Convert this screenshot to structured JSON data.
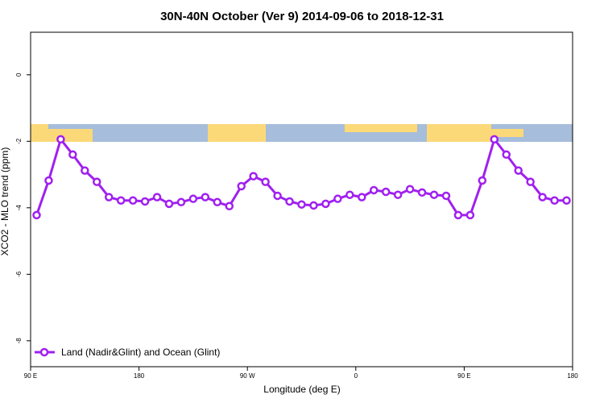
{
  "chart_data": {
    "type": "line",
    "title": "30N-40N October (Ver 9)   2014-09-06 to 2018-12-31",
    "x_label": "Longitude (deg E)",
    "y_label": "XCO2 - MLO trend (ppm)",
    "x": [
      95,
      105,
      115,
      125,
      135,
      145,
      155,
      165,
      175,
      185,
      195,
      205,
      215,
      225,
      235,
      245,
      255,
      265,
      275,
      285,
      295,
      305,
      315,
      325,
      335,
      345,
      355,
      365,
      375,
      385,
      395,
      405,
      415,
      425,
      435,
      445,
      455,
      465,
      475,
      485,
      495,
      505,
      515,
      525,
      535
    ],
    "series": [
      {
        "name": "Land (Nadir&Glint) and Ocean (Glint)",
        "color": "#a020f0",
        "values": [
          -4.22,
          -3.18,
          -1.94,
          -2.4,
          -2.88,
          -3.22,
          -3.68,
          -3.78,
          -3.78,
          -3.81,
          -3.68,
          -3.88,
          -3.83,
          -3.73,
          -3.68,
          -3.83,
          -3.95,
          -3.35,
          -3.05,
          -3.22,
          -3.64,
          -3.81,
          -3.9,
          -3.93,
          -3.88,
          -3.73,
          -3.61,
          -3.68,
          -3.47,
          -3.52,
          -3.61,
          -3.44,
          -3.54,
          -3.61,
          -3.64,
          -4.22,
          -4.22,
          -3.18,
          -1.94,
          -2.4,
          -2.88,
          -3.22,
          -3.68,
          -3.78,
          -3.78
        ]
      }
    ],
    "xlim": [
      90,
      540
    ],
    "xticks": [
      {
        "value": 90,
        "label": "90 E"
      },
      180,
      {
        "value": 270,
        "label": "90 W"
      },
      {
        "value": 360,
        "label": "0"
      },
      {
        "value": 450,
        "label": "90 E"
      },
      {
        "value": 540,
        "label": "180"
      }
    ],
    "ylim": [
      -8.78,
      1.28
    ],
    "yticks": [
      -8,
      -6,
      -4,
      -2,
      0
    ],
    "legend": "bottom-left"
  }
}
